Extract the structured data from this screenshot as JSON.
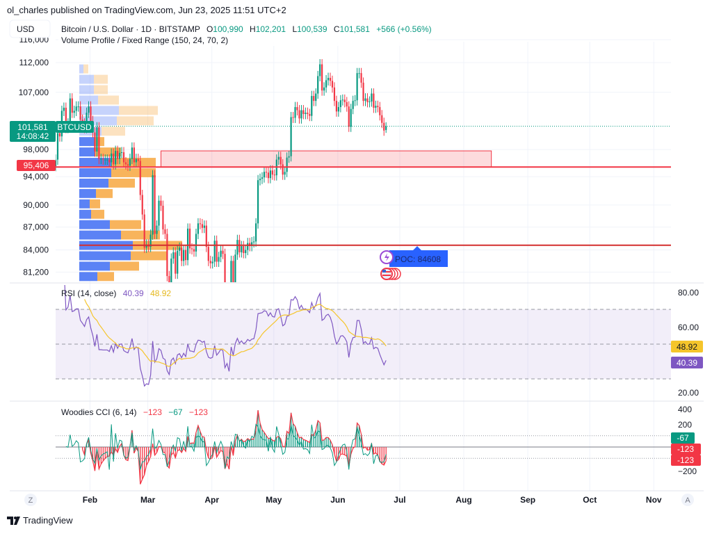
{
  "header": {
    "published": "ol_charles published on TradingView.com, Jun 23, 2025 11:51 UTC+2",
    "currency_button": "USD",
    "symbol_title": "Bitcoin / U.S. Dollar · 1D · BITSTAMP",
    "ohlc": {
      "o_label": "O",
      "o": "100,990",
      "h_label": "H",
      "h": "102,201",
      "l_label": "L",
      "l": "100,539",
      "c_label": "C",
      "c": "101,581",
      "change": "+566 (+0.56%)"
    },
    "indicator": "Volume Profile / Fixed Range (150, 24, 70, 2)"
  },
  "colors": {
    "up": "#089981",
    "down": "#f23645",
    "vp_up": "#5b82f5",
    "vp_down": "#f7ac4a",
    "rsi": "#7e57c2",
    "rsi_ma": "#f5c52b",
    "zone": "#f23645",
    "poc_label": "#2962ff"
  },
  "price_axis": {
    "scale": "log",
    "ticks": [
      "116,000",
      "112,000",
      "107,000",
      "98,000",
      "94,000",
      "90,000",
      "87,000",
      "84,000",
      "81,200"
    ]
  },
  "badges": {
    "last_price": "101,581",
    "countdown": "14:08:42",
    "symbol": "BTCUSD",
    "level": "95,406",
    "rsi_ma": "48.92",
    "rsi": "40.39",
    "cci_turbo": "-67",
    "cci_a": "-123",
    "cci_b": "-123"
  },
  "poc_label": "POC: 84608",
  "rsi_pane": {
    "title": "RSI (14, close)",
    "value": "40.39",
    "ma_value": "48.92",
    "ticks": [
      "80.00",
      "60.00",
      "20.00"
    ],
    "upper_band": 70,
    "middle": 50,
    "lower_band": 30
  },
  "cci_pane": {
    "title": "Woodies CCI (6, 14)",
    "v1": "−123",
    "v2": "−67",
    "v3": "−123",
    "ticks": [
      "400",
      "200",
      "−200"
    ]
  },
  "time_axis": {
    "labels": [
      "Feb",
      "Mar",
      "Apr",
      "May",
      "Jun",
      "Jul",
      "Aug",
      "Sep",
      "Oct",
      "Nov"
    ],
    "left_button": "Z",
    "right_button": "A"
  },
  "footer": {
    "logo_text": "TradingView"
  },
  "chart_data": {
    "type": "candlestick",
    "symbol": "BTCUSD",
    "interval": "1D",
    "start_date": "2025-01-14",
    "end_date": "2025-06-23",
    "y_scale": "log",
    "ylim": [
      80000,
      116000
    ],
    "closes": [
      96500,
      100500,
      100000,
      104000,
      104500,
      101300,
      102000,
      106000,
      103700,
      104000,
      104700,
      104700,
      102600,
      102000,
      101300,
      103700,
      104700,
      102400,
      100600,
      97700,
      101400,
      96600,
      96600,
      96500,
      96500,
      96500,
      96100,
      97400,
      95800,
      97800,
      96600,
      97500,
      97600,
      96100,
      95800,
      95600,
      96600,
      98300,
      96100,
      96600,
      96300,
      91400,
      88700,
      84300,
      84700,
      84400,
      86000,
      94200,
      86100,
      87200,
      90600,
      89900,
      86700,
      86100,
      80700,
      78500,
      82900,
      83700,
      81000,
      83900,
      84300,
      82600,
      84000,
      82700,
      86800,
      84200,
      84100,
      83800,
      86100,
      87500,
      87400,
      86900,
      87200,
      84400,
      82600,
      82300,
      82500,
      85200,
      82500,
      83100,
      83900,
      83500,
      78300,
      79200,
      76300,
      82600,
      79600,
      83400,
      85300,
      83700,
      84500,
      83600,
      84000,
      84900,
      84500,
      85000,
      85100,
      87500,
      93500,
      93700,
      93900,
      94700,
      94600,
      93800,
      94900,
      94300,
      94200,
      96500,
      96900,
      95800,
      94300,
      94700,
      96800,
      97000,
      103000,
      102900,
      104600,
      104100,
      102800,
      104100,
      103500,
      103700,
      103500,
      103200,
      106400,
      105600,
      106800,
      109700,
      111700,
      107300,
      107800,
      109000,
      109400,
      108900,
      107800,
      105600,
      103900,
      104600,
      105700,
      105800,
      105400,
      104700,
      101500,
      104300,
      105600,
      105700,
      110200,
      110200,
      108600,
      105600,
      106000,
      105400,
      105500,
      106800,
      104500,
      104800,
      104600,
      103300,
      102100,
      100900,
      101581
    ],
    "last_candle": {
      "open": 100990,
      "high": 102201,
      "low": 100539,
      "close": 101581
    },
    "horizontal_levels": [
      {
        "price": 95406,
        "color": "#f23645"
      },
      {
        "price": 84608,
        "color": "#d32f2f",
        "label": "POC: 84608"
      }
    ],
    "zone": {
      "top": 97800,
      "bottom": 95406,
      "start_date": "2025-03-06",
      "end_date": "2025-08-13"
    },
    "current_price_line": 101581,
    "volume_profile": {
      "price_range": [
        80000,
        111800
      ],
      "rows": [
        {
          "up": 6,
          "down": 7,
          "value_area": false
        },
        {
          "up": 21,
          "down": 20,
          "value_area": false
        },
        {
          "up": 21,
          "down": 20,
          "value_area": false
        },
        {
          "up": 27,
          "down": 30,
          "value_area": false
        },
        {
          "up": 57,
          "down": 56,
          "value_area": false
        },
        {
          "up": 54,
          "down": 53,
          "value_area": false
        },
        {
          "up": 32,
          "down": 34,
          "value_area": false
        },
        {
          "up": 23,
          "down": 13,
          "value_area": true
        },
        {
          "up": 23,
          "down": 37,
          "value_area": true
        },
        {
          "up": 46,
          "down": 64,
          "value_area": true
        },
        {
          "up": 46,
          "down": 64,
          "value_area": true
        },
        {
          "up": 42,
          "down": 38,
          "value_area": true
        },
        {
          "up": 24,
          "down": 24,
          "value_area": true
        },
        {
          "up": 15,
          "down": 15,
          "value_area": true
        },
        {
          "up": 17,
          "down": 19,
          "value_area": true
        },
        {
          "up": 44,
          "down": 45,
          "value_area": true
        },
        {
          "up": 60,
          "down": 56,
          "value_area": true
        },
        {
          "up": 77,
          "down": 71,
          "value_area": true,
          "poc": true
        },
        {
          "up": 74,
          "down": 52,
          "value_area": true
        },
        {
          "up": 44,
          "down": 42,
          "value_area": true
        },
        {
          "up": 26,
          "down": 24,
          "value_area": true
        }
      ]
    }
  }
}
